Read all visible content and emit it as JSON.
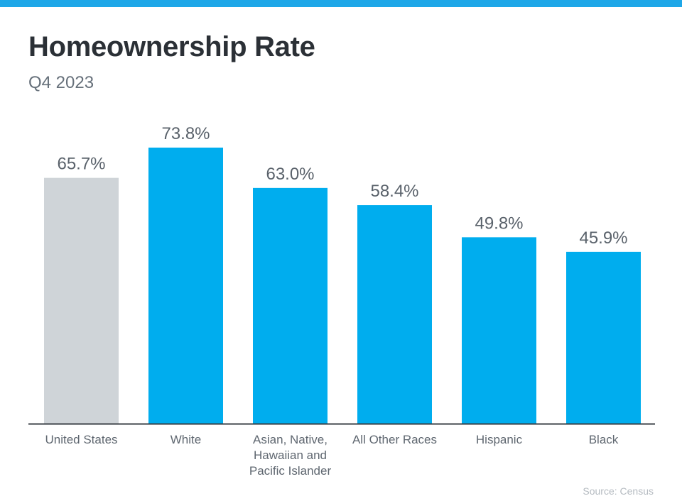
{
  "header": {
    "title": "Homeownership Rate",
    "subtitle": "Q4 2023"
  },
  "colors": {
    "accent": "#00adee",
    "highlight_bar": "#00adee",
    "reference_bar": "#cfd4d8",
    "top_band": "#1ea7e8",
    "axis": "#3a3f44"
  },
  "chart_data": {
    "type": "bar",
    "title": "Homeownership Rate",
    "subtitle": "Q4 2023",
    "xlabel": "",
    "ylabel": "",
    "ylim": [
      0,
      73.8
    ],
    "grid": false,
    "legend": "none",
    "categories": [
      [
        "United States"
      ],
      [
        "White"
      ],
      [
        "Asian, Native,",
        "Hawaiian and",
        "Pacific Islander"
      ],
      [
        "All Other Races"
      ],
      [
        "Hispanic"
      ],
      [
        "Black"
      ]
    ],
    "values": [
      65.7,
      73.8,
      63.0,
      58.4,
      49.8,
      45.9
    ],
    "value_labels": [
      "65.7%",
      "73.8%",
      "63.0%",
      "58.4%",
      "49.8%",
      "45.9%"
    ],
    "bar_colors": [
      "#cfd4d8",
      "#00adee",
      "#00adee",
      "#00adee",
      "#00adee",
      "#00adee"
    ],
    "source": "Source: Census"
  },
  "footer": {
    "source": "Source: Census"
  }
}
